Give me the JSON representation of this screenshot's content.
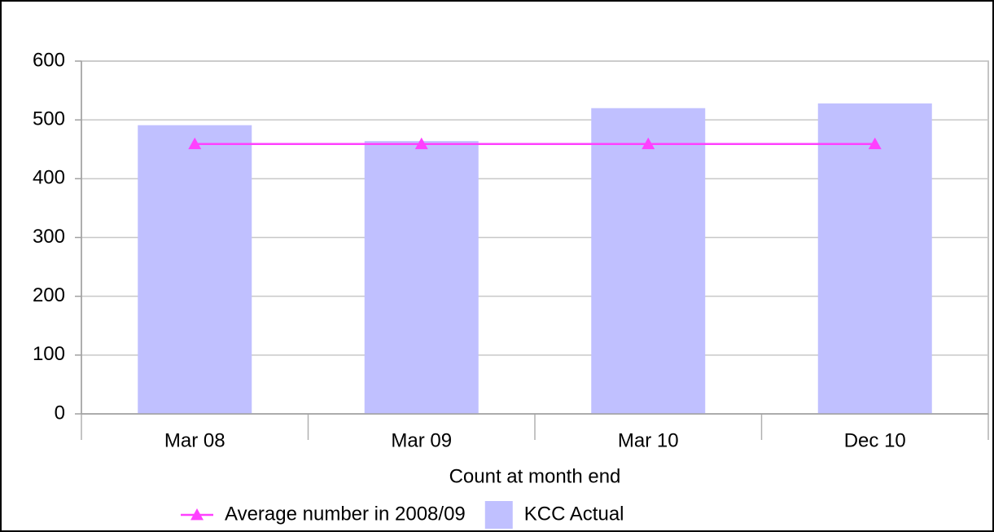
{
  "chart_data": {
    "type": "bar",
    "x_label": "Count at month end",
    "categories": [
      "Mar 08",
      "Mar 09",
      "Mar 10",
      "Dec 10"
    ],
    "series": [
      {
        "name": "Average number in 2008/09",
        "type": "line",
        "color": "#ff40ff",
        "values": [
          459,
          459,
          459,
          459
        ]
      },
      {
        "name": "KCC Actual",
        "type": "bar",
        "color": "#c0c0ff",
        "values": [
          491,
          464,
          520,
          528
        ]
      }
    ],
    "ylim": [
      0,
      600
    ],
    "yticks": [
      0,
      100,
      200,
      300,
      400,
      500,
      600
    ],
    "grid": true,
    "legend": "bottom"
  }
}
